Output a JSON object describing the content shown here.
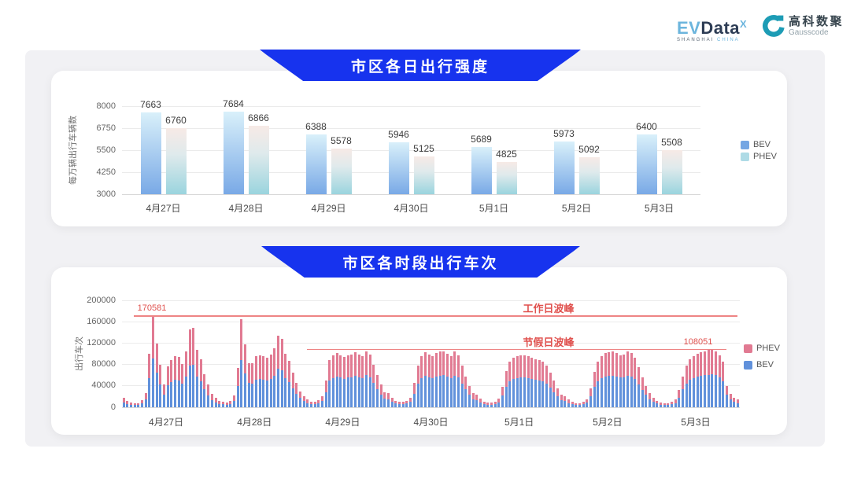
{
  "header": {
    "evdata": {
      "ev": "EV",
      "data": "Data",
      "sup": "X",
      "sub_left": "SHANGHAI",
      "sub_right": "CHINA"
    },
    "gausscode": {
      "cn": "高科数聚",
      "en": "Gausscode"
    }
  },
  "colors": {
    "banner_blue": "#1733ee",
    "bev_solid": "#6191db",
    "phev_solid": "#e17a92",
    "bev_gradient_top": "#d9f0fa",
    "bev_gradient_bottom": "#79a9e6",
    "phev_gradient_top": "#f7eae6",
    "phev_gradient_mid": "#dfeaec",
    "phev_gradient_bottom": "#9ad4de",
    "annotation_text": "#e0514e",
    "annotation_line": "#ee8484",
    "grid_line": "#ebebeb",
    "axis_line": "#d8d8d8",
    "tick_text": "#666666",
    "value_text": "#3d3d3d",
    "xlabel_text": "#4a4a4a",
    "legend_text": "#555555"
  },
  "chart_data": [
    {
      "type": "bar",
      "title": "市区各日出行强度",
      "ylabel": "每万辆出行车辆数",
      "categories": [
        "4月27日",
        "4月28日",
        "4月29日",
        "4月30日",
        "5月1日",
        "5月2日",
        "5月3日"
      ],
      "series": [
        {
          "name": "BEV",
          "values": [
            7663,
            7684,
            6388,
            5946,
            5689,
            5973,
            6400
          ]
        },
        {
          "name": "PHEV",
          "values": [
            6760,
            6866,
            5578,
            5125,
            4825,
            5092,
            5508
          ]
        }
      ],
      "ylim": [
        3000,
        8000
      ],
      "yticks": [
        3000,
        4250,
        5500,
        6750,
        8000
      ],
      "grid": true,
      "legend_position": "right",
      "legend_items": [
        {
          "label": "BEV",
          "color": "#74a6e3"
        },
        {
          "label": "PHEV",
          "color": "#aedbe6"
        }
      ]
    },
    {
      "type": "stacked-bar",
      "title": "市区各时段出行车次",
      "ylabel": "出行车次",
      "categories": [
        "4月27日",
        "4月28日",
        "4月29日",
        "4月30日",
        "5月1日",
        "5月2日",
        "5月3日"
      ],
      "bars_per_day": 24,
      "ylim": [
        0,
        200000
      ],
      "yticks": [
        0,
        40000,
        80000,
        120000,
        160000,
        200000
      ],
      "grid": true,
      "legend_position": "right",
      "legend_items": [
        {
          "label": "PHEV",
          "color": "#e17a92"
        },
        {
          "label": "BEV",
          "color": "#6191db"
        }
      ],
      "annotations": [
        {
          "label": "工作日波峰",
          "value": 170581,
          "value_label": "170581"
        },
        {
          "label": "节假日波峰",
          "value": 108051,
          "value_label": "108051"
        }
      ],
      "series": [
        {
          "name": "BEV",
          "values_by_day": [
            [
              9000,
              6500,
              5000,
              3800,
              4300,
              7000,
              14500,
              54000,
              91000,
              64000,
              43000,
              23000,
              41000,
              47500,
              51000,
              50500,
              44000,
              57000,
              78000,
              80000,
              58000,
              48000,
              33500,
              22500
            ],
            [
              13500,
              9000,
              6500,
              5400,
              4900,
              6500,
              12000,
              39500,
              88500,
              63000,
              45000,
              44000,
              51000,
              52500,
              51000,
              50000,
              53500,
              59500,
              72500,
              69000,
              54000,
              47000,
              35000,
              24500
            ],
            [
              17000,
              11500,
              8000,
              6300,
              5700,
              7400,
              11500,
              28500,
              50000,
              55000,
              57500,
              55500,
              53500,
              55500,
              56500,
              59000,
              56500,
              54500,
              60000,
              56000,
              45500,
              34000,
              24000,
              16000
            ],
            [
              14800,
              10300,
              6800,
              5700,
              5700,
              6800,
              10300,
              25700,
              44500,
              54200,
              58700,
              56400,
              54200,
              57600,
              59300,
              59900,
              57000,
              54700,
              59300,
              55300,
              44500,
              33100,
              22800,
              15400
            ],
            [
              13700,
              9100,
              6300,
              5100,
              5100,
              6300,
              9100,
              21700,
              38800,
              48500,
              53000,
              54700,
              55300,
              55300,
              54200,
              52400,
              51300,
              50200,
              49000,
              44500,
              36500,
              28500,
              20500,
              13700
            ],
            [
              11400,
              8000,
              5700,
              4600,
              4600,
              5700,
              8600,
              20500,
              37600,
              49000,
              54700,
              57600,
              58700,
              59300,
              57600,
              55300,
              56400,
              59300,
              57600,
              52400,
              42800,
              31900,
              22800,
              14800
            ],
            [
              10300,
              6800,
              5100,
              4600,
              4600,
              5700,
              8000,
              18200,
              33100,
              44500,
              51300,
              54700,
              57000,
              58700,
              59900,
              61000,
              61600,
              59900,
              55300,
              48500,
              22800,
              14300,
              10300,
              8000
            ]
          ]
        },
        {
          "name": "PHEV",
          "values_by_day": [
            [
              8000,
              5500,
              4000,
              3200,
              3700,
              6000,
              12500,
              46000,
              79581,
              55000,
              37000,
              19000,
              35000,
              40500,
              44000,
              43500,
              37000,
              48000,
              67000,
              69000,
              50000,
              41000,
              28500,
              19500
            ],
            [
              11500,
              8000,
              5500,
              4600,
              4100,
              5500,
              10000,
              33500,
              75500,
              54000,
              38000,
              38000,
              44000,
              44500,
              44000,
              43000,
              45500,
              50500,
              61500,
              59000,
              46000,
              40000,
              30000,
              20500
            ],
            [
              13000,
              8500,
              6000,
              4700,
              4300,
              5600,
              8500,
              21500,
              38000,
              42000,
              43500,
              41500,
              40500,
              41500,
              42500,
              44000,
              42500,
              41500,
              45000,
              42000,
              34500,
              26000,
              18000,
              12000
            ],
            [
              11200,
              7700,
              5200,
              4300,
              4300,
              5200,
              7700,
              19300,
              33500,
              40800,
              44300,
              42600,
              40800,
              43400,
              44700,
              45100,
              43000,
              41300,
              44700,
              41700,
              33500,
              24900,
              17200,
              11600
            ],
            [
              10300,
              6900,
              4700,
              3900,
              3900,
              4700,
              6900,
              16300,
              29200,
              36500,
              40000,
              41300,
              41700,
              41700,
              40800,
              39600,
              38700,
              37800,
              37000,
              33500,
              27500,
              21500,
              15500,
              10300
            ],
            [
              8600,
              6000,
              4300,
              3400,
              3400,
              4300,
              6400,
              15500,
              28400,
              37000,
              41300,
              43400,
              44300,
              44700,
              43400,
              41700,
              42600,
              44700,
              43400,
              39600,
              32200,
              24100,
              17200,
              11200
            ],
            [
              7700,
              5200,
              3900,
              3400,
              3400,
              4300,
              6000,
              13800,
              24900,
              33500,
              38700,
              41300,
              43000,
              44300,
              45100,
              46000,
              46451,
              45100,
              41700,
              36500,
              17200,
              10700,
              7700,
              6000
            ]
          ]
        }
      ]
    }
  ]
}
